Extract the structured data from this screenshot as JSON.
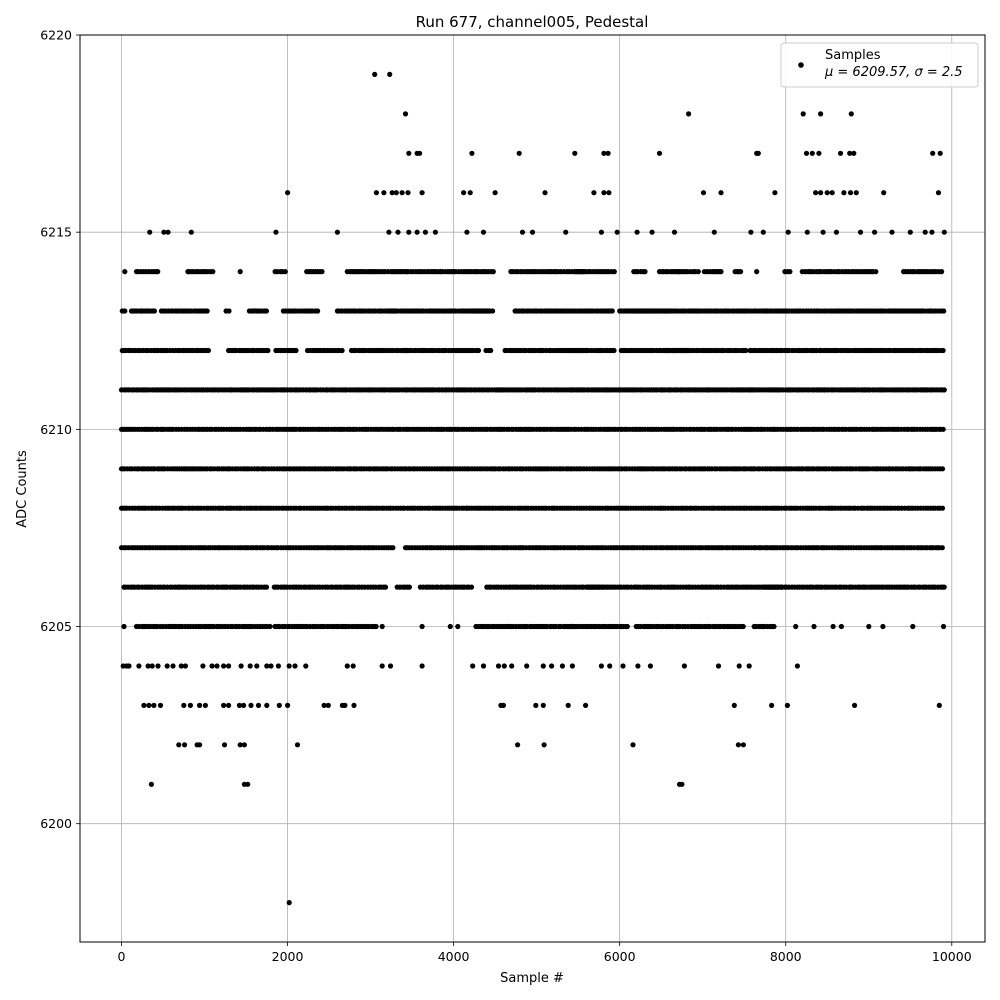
{
  "chart_data": {
    "type": "scatter",
    "title": "Run 677, channel005, Pedestal",
    "xlabel": "Sample #",
    "ylabel": "ADC Counts",
    "xlim": [
      -500,
      10400
    ],
    "ylim": [
      6197,
      6220
    ],
    "x_ticks": [
      0,
      2000,
      4000,
      6000,
      8000,
      10000
    ],
    "x_tick_labels": [
      "0",
      "2000",
      "4000",
      "6000",
      "8000",
      "10000"
    ],
    "y_ticks": [
      6200,
      6205,
      6210,
      6215,
      6220
    ],
    "y_tick_labels": [
      "6200",
      "6205",
      "6210",
      "6215",
      "6220"
    ],
    "grid": true,
    "legend": {
      "placement": "top-right",
      "series_label": "Samples",
      "stats_label": "μ = 6209.57, σ = 2.5"
    },
    "marker_color": "#000000",
    "series": [
      {
        "name": "Samples",
        "points": [
          [
            3050,
            6219
          ],
          [
            3230,
            6219
          ],
          [
            3420,
            6218
          ],
          [
            6830,
            6218
          ],
          [
            8210,
            6218
          ],
          [
            8420,
            6218
          ],
          [
            8790,
            6218
          ],
          [
            3460,
            6217
          ],
          [
            3560,
            6217
          ],
          [
            3590,
            6217
          ],
          [
            4220,
            6217
          ],
          [
            4790,
            6217
          ],
          [
            5460,
            6217
          ],
          [
            5810,
            6217
          ],
          [
            5860,
            6217
          ],
          [
            6480,
            6217
          ],
          [
            7650,
            6217
          ],
          [
            7670,
            6217
          ],
          [
            8250,
            6217
          ],
          [
            8320,
            6217
          ],
          [
            8400,
            6217
          ],
          [
            8660,
            6217
          ],
          [
            8770,
            6217
          ],
          [
            8820,
            6217
          ],
          [
            9770,
            6217
          ],
          [
            9860,
            6217
          ],
          [
            2000,
            6216
          ],
          [
            3070,
            6216
          ],
          [
            3160,
            6216
          ],
          [
            3260,
            6216
          ],
          [
            3310,
            6216
          ],
          [
            3380,
            6216
          ],
          [
            3450,
            6216
          ],
          [
            3620,
            6216
          ],
          [
            4120,
            6216
          ],
          [
            4200,
            6216
          ],
          [
            4500,
            6216
          ],
          [
            5100,
            6216
          ],
          [
            5690,
            6216
          ],
          [
            5810,
            6216
          ],
          [
            5870,
            6216
          ],
          [
            7010,
            6216
          ],
          [
            7220,
            6216
          ],
          [
            7870,
            6216
          ],
          [
            8360,
            6216
          ],
          [
            8420,
            6216
          ],
          [
            8500,
            6216
          ],
          [
            8560,
            6216
          ],
          [
            8700,
            6216
          ],
          [
            8780,
            6216
          ],
          [
            8850,
            6216
          ],
          [
            9180,
            6216
          ],
          [
            9840,
            6216
          ],
          [
            340,
            6215
          ],
          [
            510,
            6215
          ],
          [
            560,
            6215
          ],
          [
            840,
            6215
          ],
          [
            1860,
            6215
          ],
          [
            2600,
            6215
          ],
          [
            3220,
            6215
          ],
          [
            3330,
            6215
          ],
          [
            3460,
            6215
          ],
          [
            3560,
            6215
          ],
          [
            3660,
            6215
          ],
          [
            3780,
            6215
          ],
          [
            4160,
            6215
          ],
          [
            4360,
            6215
          ],
          [
            4830,
            6215
          ],
          [
            4950,
            6215
          ],
          [
            5350,
            6215
          ],
          [
            5780,
            6215
          ],
          [
            5970,
            6215
          ],
          [
            6210,
            6215
          ],
          [
            6390,
            6215
          ],
          [
            6660,
            6215
          ],
          [
            7140,
            6215
          ],
          [
            7580,
            6215
          ],
          [
            7730,
            6215
          ],
          [
            8030,
            6215
          ],
          [
            8260,
            6215
          ],
          [
            8450,
            6215
          ],
          [
            8610,
            6215
          ],
          [
            8900,
            6215
          ],
          [
            9070,
            6215
          ],
          [
            9280,
            6215
          ],
          [
            9500,
            6215
          ],
          [
            9680,
            6215
          ],
          [
            9760,
            6215
          ],
          [
            9910,
            6215
          ]
        ],
        "dense_levels": [
          {
            "y": 6214,
            "segments": [
              [
                40,
                60
              ],
              [
                180,
                440
              ],
              [
                800,
                1130
              ],
              [
                1430,
                1440
              ],
              [
                1850,
                1990
              ],
              [
                2230,
                2420
              ],
              [
                2720,
                3480
              ],
              [
                3430,
                4300
              ],
              [
                4290,
                4480
              ],
              [
                4690,
                5580
              ],
              [
                5470,
                5940
              ],
              [
                6170,
                6310
              ],
              [
                6480,
                6740
              ],
              [
                6700,
                6960
              ],
              [
                7020,
                7230
              ],
              [
                7390,
                7480
              ],
              [
                7650,
                7660
              ],
              [
                7990,
                8070
              ],
              [
                8200,
                9110
              ],
              [
                9420,
                9910
              ]
            ]
          },
          {
            "y": 6213,
            "segments": [
              [
                10,
                50
              ],
              [
                120,
                400
              ],
              [
                480,
                1050
              ],
              [
                1260,
                1320
              ],
              [
                1540,
                1770
              ],
              [
                1950,
                2390
              ],
              [
                2600,
                3290
              ],
              [
                3230,
                4420
              ],
              [
                4250,
                4480
              ],
              [
                4740,
                5620
              ],
              [
                5600,
                5930
              ],
              [
                6000,
                6570
              ],
              [
                6150,
                7250
              ],
              [
                7270,
                7780
              ],
              [
                7750,
                9910
              ]
            ]
          },
          {
            "y": 6212,
            "segments": [
              [
                10,
                690
              ],
              [
                700,
                1050
              ],
              [
                1290,
                1780
              ],
              [
                1860,
                2120
              ],
              [
                2240,
                2660
              ],
              [
                2770,
                3450
              ],
              [
                3400,
                4320
              ],
              [
                4390,
                4470
              ],
              [
                4620,
                5610
              ],
              [
                5420,
                5960
              ],
              [
                6020,
                6830
              ],
              [
                6550,
                7520
              ],
              [
                7570,
                9910
              ]
            ]
          },
          {
            "y": 6211,
            "segments": [
              [
                0,
                9910
              ]
            ]
          },
          {
            "y": 6210,
            "segments": [
              [
                0,
                9910
              ]
            ]
          },
          {
            "y": 6209,
            "segments": [
              [
                0,
                9910
              ]
            ]
          },
          {
            "y": 6208,
            "segments": [
              [
                0,
                4190
              ],
              [
                4160,
                9910
              ]
            ]
          },
          {
            "y": 6207,
            "segments": [
              [
                0,
                3290
              ],
              [
                3420,
                9910
              ]
            ]
          },
          {
            "y": 6206,
            "segments": [
              [
                30,
                1770
              ],
              [
                1840,
                3190
              ],
              [
                3320,
                3480
              ],
              [
                3600,
                4220
              ],
              [
                4400,
                5810
              ],
              [
                5620,
                7970
              ],
              [
                7720,
                9910
              ]
            ]
          },
          {
            "y": 6205,
            "segments": [
              [
                30,
                60
              ],
              [
                180,
                1790
              ],
              [
                1850,
                3090
              ],
              [
                4270,
                5460
              ],
              [
                5410,
                6110
              ],
              [
                6200,
                7500
              ],
              [
                7620,
                7870
              ]
            ]
          }
        ],
        "sparse_points": [
          [
            3140,
            6205
          ],
          [
            3620,
            6205
          ],
          [
            3960,
            6205
          ],
          [
            4050,
            6205
          ],
          [
            8120,
            6205
          ],
          [
            8340,
            6205
          ],
          [
            8570,
            6205
          ],
          [
            8670,
            6205
          ],
          [
            9000,
            6205
          ],
          [
            9170,
            6205
          ],
          [
            9530,
            6205
          ],
          [
            9900,
            6205
          ],
          [
            20,
            6204
          ],
          [
            60,
            6204
          ],
          [
            90,
            6204
          ],
          [
            210,
            6204
          ],
          [
            320,
            6204
          ],
          [
            370,
            6204
          ],
          [
            440,
            6204
          ],
          [
            550,
            6204
          ],
          [
            620,
            6204
          ],
          [
            720,
            6204
          ],
          [
            770,
            6204
          ],
          [
            980,
            6204
          ],
          [
            1090,
            6204
          ],
          [
            1150,
            6204
          ],
          [
            1230,
            6204
          ],
          [
            1290,
            6204
          ],
          [
            1440,
            6204
          ],
          [
            1550,
            6204
          ],
          [
            1630,
            6204
          ],
          [
            1750,
            6204
          ],
          [
            1800,
            6204
          ],
          [
            1890,
            6204
          ],
          [
            2020,
            6204
          ],
          [
            2090,
            6204
          ],
          [
            2220,
            6204
          ],
          [
            2720,
            6204
          ],
          [
            2790,
            6204
          ],
          [
            3140,
            6204
          ],
          [
            3240,
            6204
          ],
          [
            3620,
            6204
          ],
          [
            4230,
            6204
          ],
          [
            4360,
            6204
          ],
          [
            4540,
            6204
          ],
          [
            4610,
            6204
          ],
          [
            4700,
            6204
          ],
          [
            4880,
            6204
          ],
          [
            5080,
            6204
          ],
          [
            5180,
            6204
          ],
          [
            5310,
            6204
          ],
          [
            5430,
            6204
          ],
          [
            5780,
            6204
          ],
          [
            5880,
            6204
          ],
          [
            6040,
            6204
          ],
          [
            6220,
            6204
          ],
          [
            6370,
            6204
          ],
          [
            6780,
            6204
          ],
          [
            7190,
            6204
          ],
          [
            7440,
            6204
          ],
          [
            7560,
            6204
          ],
          [
            8140,
            6204
          ],
          [
            270,
            6203
          ],
          [
            330,
            6203
          ],
          [
            390,
            6203
          ],
          [
            470,
            6203
          ],
          [
            750,
            6203
          ],
          [
            830,
            6203
          ],
          [
            940,
            6203
          ],
          [
            1010,
            6203
          ],
          [
            1230,
            6203
          ],
          [
            1290,
            6203
          ],
          [
            1420,
            6203
          ],
          [
            1470,
            6203
          ],
          [
            1560,
            6203
          ],
          [
            1650,
            6203
          ],
          [
            1750,
            6203
          ],
          [
            1900,
            6203
          ],
          [
            2000,
            6203
          ],
          [
            2440,
            6203
          ],
          [
            2490,
            6203
          ],
          [
            2660,
            6203
          ],
          [
            2690,
            6203
          ],
          [
            2800,
            6203
          ],
          [
            4570,
            6203
          ],
          [
            4600,
            6203
          ],
          [
            4990,
            6203
          ],
          [
            5080,
            6203
          ],
          [
            5380,
            6203
          ],
          [
            5590,
            6203
          ],
          [
            7380,
            6203
          ],
          [
            7830,
            6203
          ],
          [
            8020,
            6203
          ],
          [
            8830,
            6203
          ],
          [
            9850,
            6203
          ],
          [
            690,
            6202
          ],
          [
            760,
            6202
          ],
          [
            910,
            6202
          ],
          [
            940,
            6202
          ],
          [
            1240,
            6202
          ],
          [
            1430,
            6202
          ],
          [
            1480,
            6202
          ],
          [
            2120,
            6202
          ],
          [
            4770,
            6202
          ],
          [
            5090,
            6202
          ],
          [
            6160,
            6202
          ],
          [
            7430,
            6202
          ],
          [
            7490,
            6202
          ],
          [
            360,
            6201
          ],
          [
            1480,
            6201
          ],
          [
            1520,
            6201
          ],
          [
            6720,
            6201
          ],
          [
            6750,
            6201
          ],
          [
            2020,
            6198
          ]
        ]
      }
    ]
  }
}
